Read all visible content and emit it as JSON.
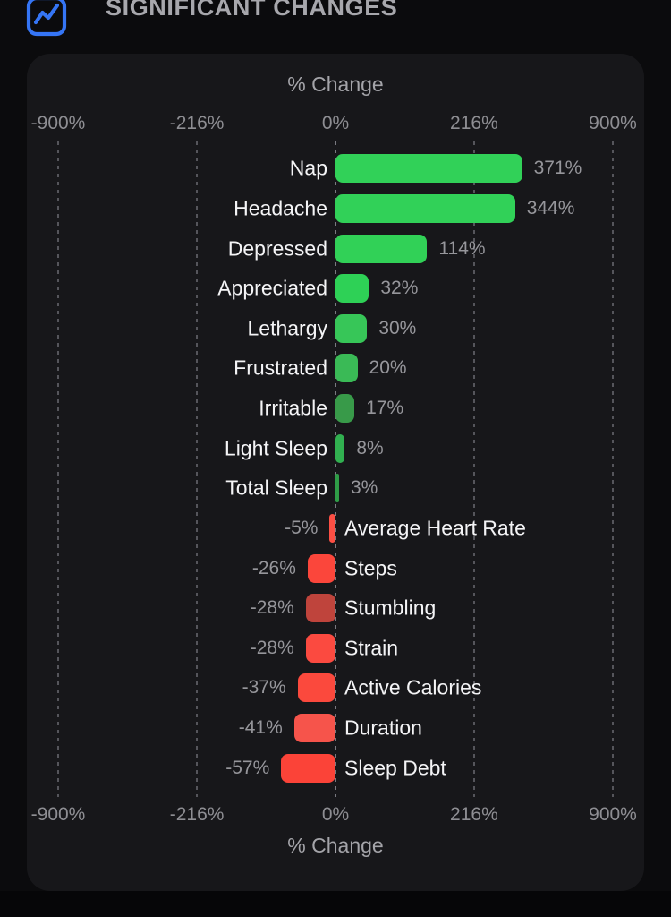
{
  "header": {
    "title": "SIGNIFICANT CHANGES",
    "icon": "chart-line-icon",
    "icon_color": "#3575f5"
  },
  "chart_data": {
    "type": "bar",
    "orientation": "horizontal",
    "title": "SIGNIFICANT CHANGES",
    "xlabel": "% Change",
    "xlim": [
      -900,
      900
    ],
    "scale": "symlog",
    "linthresh": 100,
    "grid": "dashed-vertical",
    "positive_color": "#31d158",
    "negative_color": "#fb463b",
    "axis_ticks": [
      {
        "value": -900,
        "label": "-900%"
      },
      {
        "value": -216,
        "label": "-216%"
      },
      {
        "value": 0,
        "label": "0%"
      },
      {
        "value": 216,
        "label": "216%"
      },
      {
        "value": 900,
        "label": "900%"
      }
    ],
    "bars": [
      {
        "label": "Nap",
        "value": 371,
        "display": "371%",
        "color": "#31d158"
      },
      {
        "label": "Headache",
        "value": 344,
        "display": "344%",
        "color": "#31d158"
      },
      {
        "label": "Depressed",
        "value": 114,
        "display": "114%",
        "color": "#31d157"
      },
      {
        "label": "Appreciated",
        "value": 32,
        "display": "32%",
        "color": "#2ed156"
      },
      {
        "label": "Lethargy",
        "value": 30,
        "display": "30%",
        "color": "#37c658"
      },
      {
        "label": "Frustrated",
        "value": 20,
        "display": "20%",
        "color": "#3aba56"
      },
      {
        "label": "Irritable",
        "value": 17,
        "display": "17%",
        "color": "#389a49"
      },
      {
        "label": "Light Sleep",
        "value": 8,
        "display": "8%",
        "color": "#31b050"
      },
      {
        "label": "Total Sleep",
        "value": 3,
        "display": "3%",
        "color": "#2f9c47"
      },
      {
        "label": "Average Heart Rate",
        "value": -5,
        "display": "-5%",
        "color": "#fc4f44"
      },
      {
        "label": "Steps",
        "value": -26,
        "display": "-26%",
        "color": "#fb463b"
      },
      {
        "label": "Stumbling",
        "value": -28,
        "display": "-28%",
        "color": "#bf443c"
      },
      {
        "label": "Strain",
        "value": -28,
        "display": "-28%",
        "color": "#fb4a40"
      },
      {
        "label": "Active Calories",
        "value": -37,
        "display": "-37%",
        "color": "#fb493d"
      },
      {
        "label": "Duration",
        "value": -41,
        "display": "-41%",
        "color": "#f6544b"
      },
      {
        "label": "Sleep Debt",
        "value": -57,
        "display": "-57%",
        "color": "#fb4338"
      }
    ]
  }
}
